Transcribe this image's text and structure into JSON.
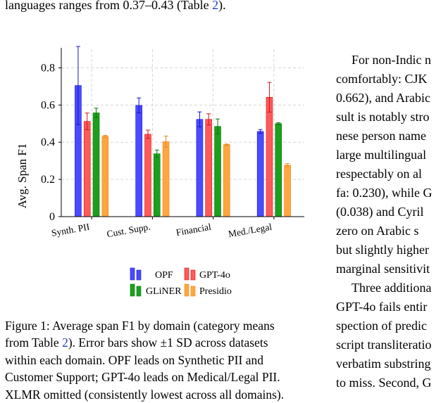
{
  "prev_text": {
    "before_ref": "languages ranges from 0.37–0.43 (Table ",
    "ref": "2",
    "after_ref": ")."
  },
  "right_column": [
    "For non-Indic n",
    "comfortably: CJK",
    "0.662), and Arabic",
    "sult is notably stro",
    "nese person name",
    "large multilingual",
    "respectably on al",
    "fa: 0.230), while G",
    "(0.038) and Cyril",
    "zero on Arabic s",
    "but slightly higher",
    "marginal sensitivit",
    "Three additiona",
    "GPT-4o fails entir",
    "spection of predic",
    "script transliteratio",
    "verbatim substring",
    "to miss. Second, G"
  ],
  "caption": {
    "line1": "Figure 1: Average span F1 by domain (category means",
    "line2_before": "from Table ",
    "line2_ref": "2",
    "line2_after": "). Error bars show ±1 SD across datasets",
    "line3": "within each domain. OPF leads on Synthetic PII and",
    "line4": "Customer Support; GPT-4o leads on Medical/Legal PII.",
    "line5": "XLMR omitted (consistently lowest across all domains)."
  },
  "chart_data": {
    "type": "bar",
    "title": "",
    "xlabel": "",
    "ylabel": "Avg. Span F1",
    "ylim": [
      0,
      0.9
    ],
    "yticks": [
      0,
      0.2,
      0.4,
      0.6,
      0.8
    ],
    "ytick_labels": [
      "0",
      "0.2",
      "0.4",
      "0.6",
      "0.8"
    ],
    "grid": true,
    "categories": [
      "Synth. PII",
      "Cust. Supp.",
      "Financial",
      "Med./Legal"
    ],
    "series": [
      {
        "name": "OPF",
        "color": "#4a4aff",
        "edge": "#1515d6",
        "values": [
          0.705,
          0.598,
          0.523,
          0.458
        ],
        "err": [
          0.21,
          0.04,
          0.04,
          0.01
        ]
      },
      {
        "name": "GPT-4o",
        "color": "#ff5a5a",
        "edge": "#d21818",
        "values": [
          0.512,
          0.443,
          0.523,
          0.642
        ],
        "err": [
          0.045,
          0.022,
          0.03,
          0.08
        ]
      },
      {
        "name": "GLiNER",
        "color": "#1e9e1e",
        "edge": "#087a08",
        "values": [
          0.558,
          0.338,
          0.485,
          0.5
        ],
        "err": [
          0.025,
          0.02,
          0.04,
          0.005
        ]
      },
      {
        "name": "Presidio",
        "color": "#ffa640",
        "edge": "#e48a1e",
        "values": [
          0.432,
          0.403,
          0.387,
          0.277
        ],
        "err": [
          0.005,
          0.03,
          0.003,
          0.008
        ]
      }
    ],
    "legend": {
      "position": "bottom",
      "columns": 2,
      "order": [
        "OPF",
        "GPT-4o",
        "GLiNER",
        "Presidio"
      ]
    }
  }
}
